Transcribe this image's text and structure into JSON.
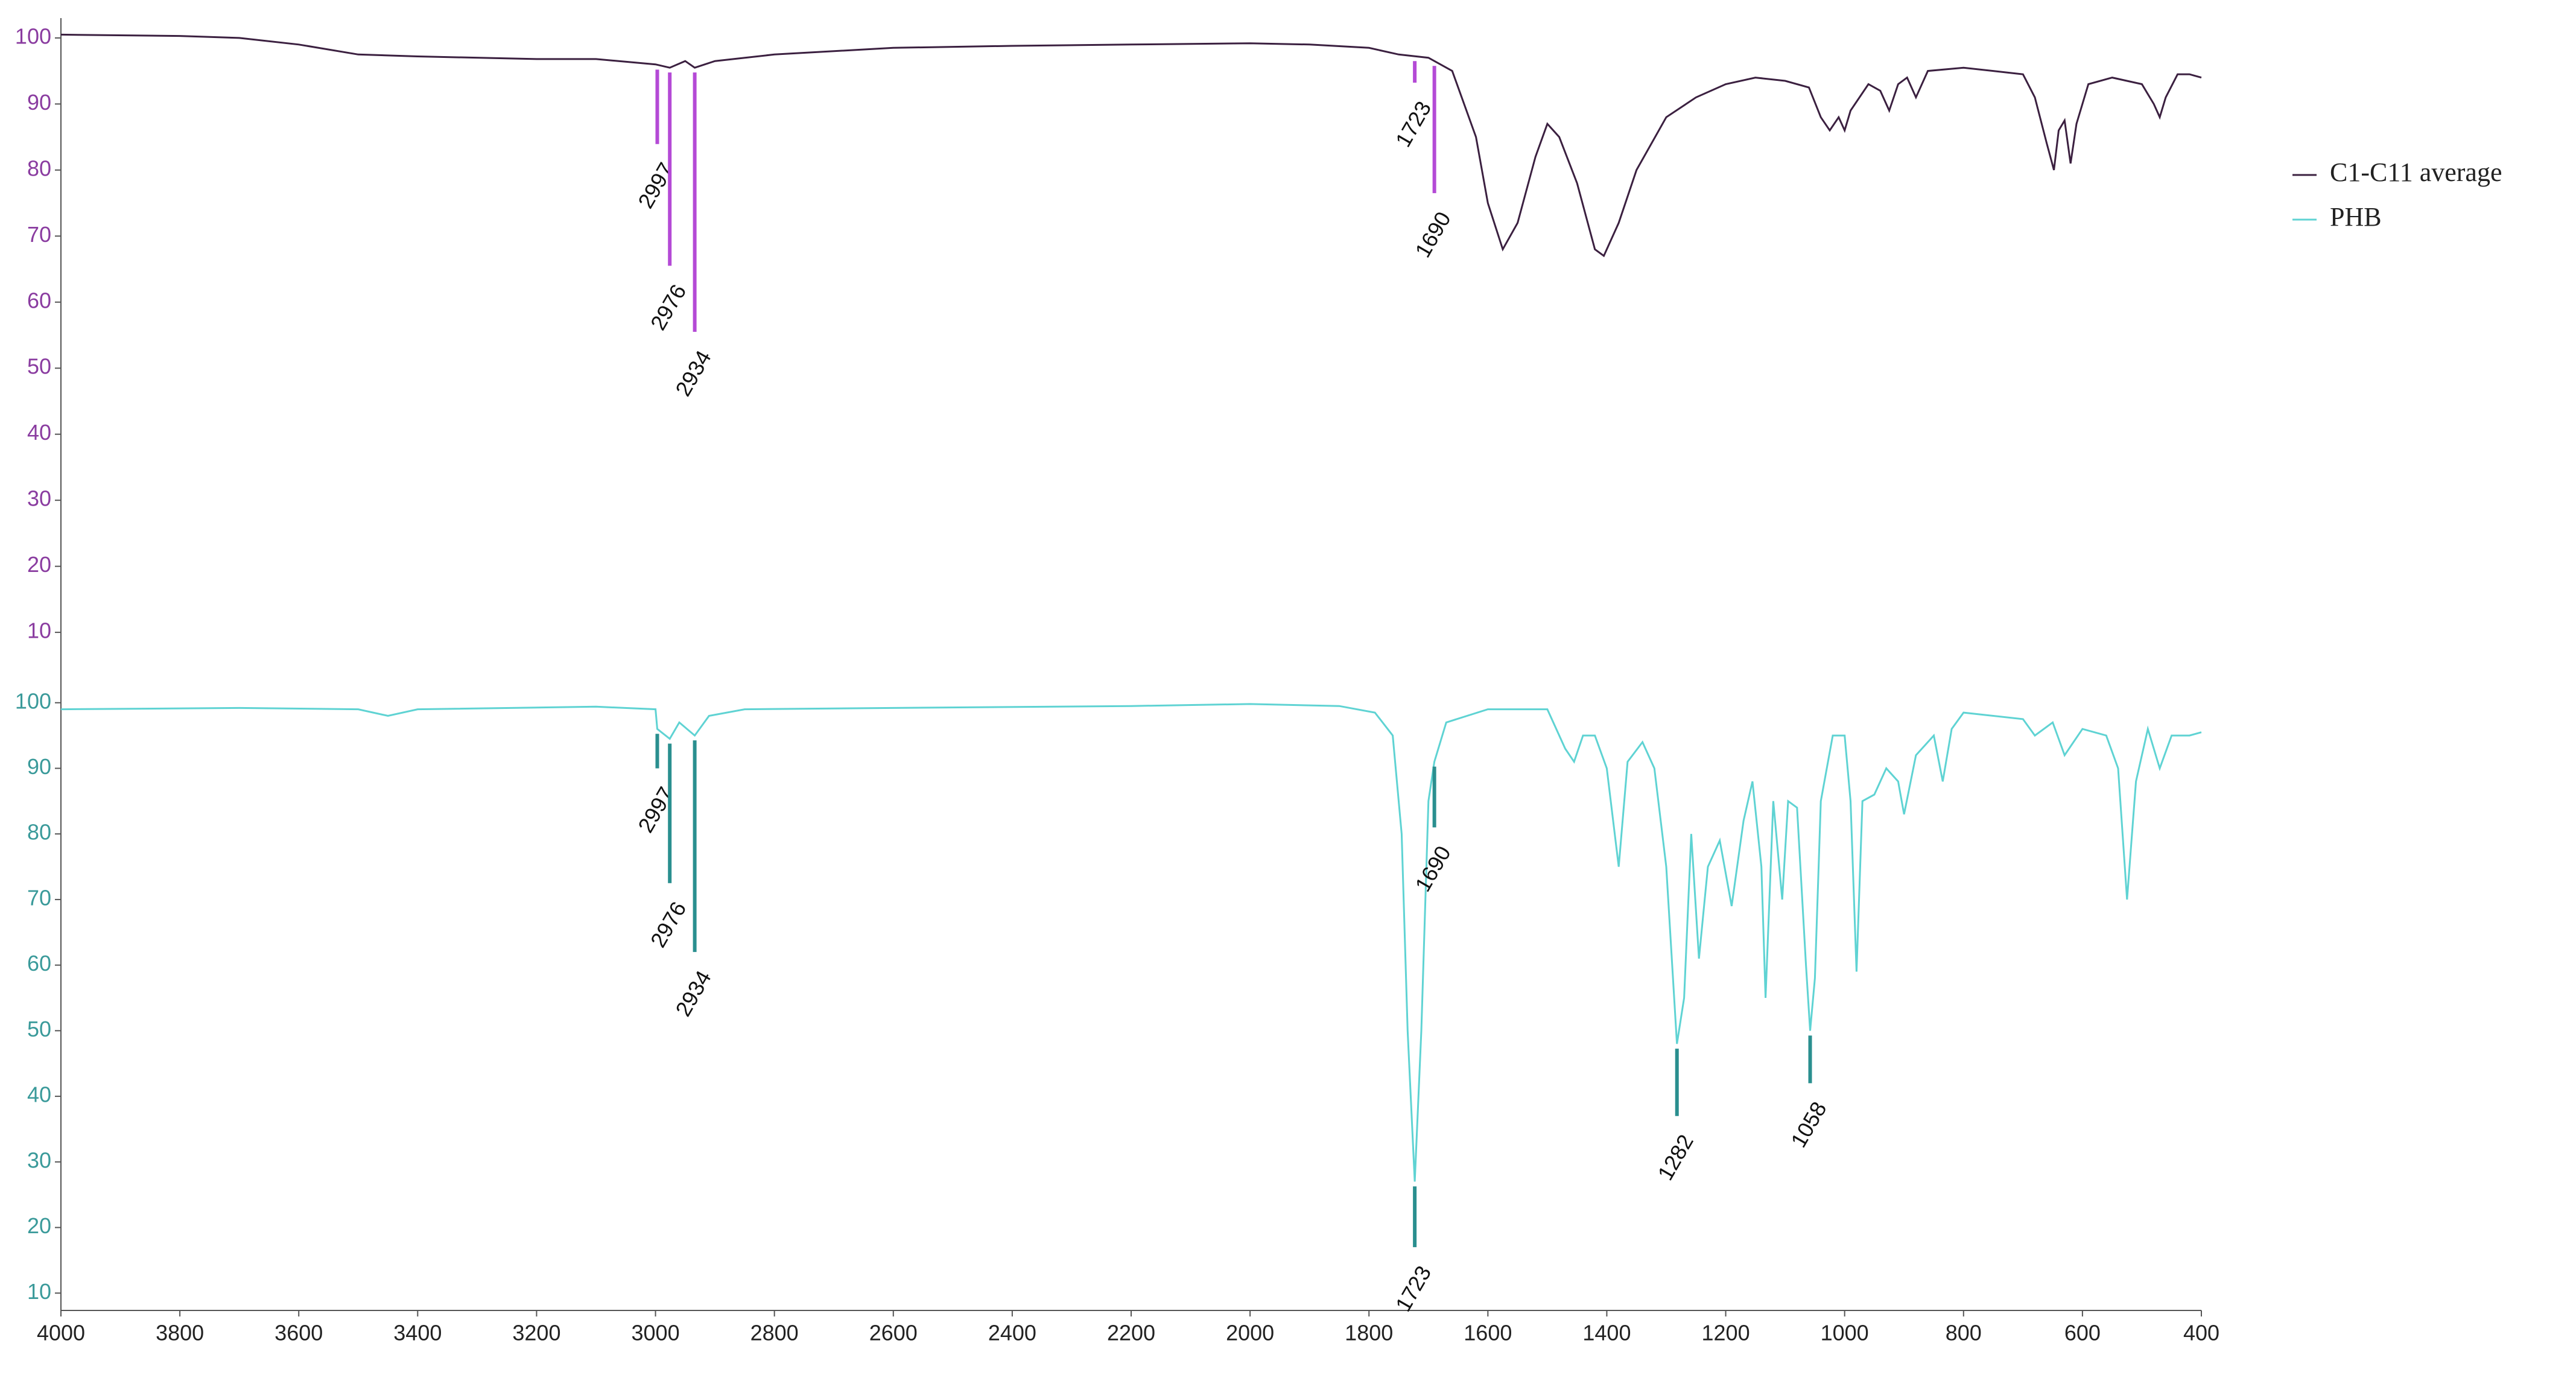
{
  "chart_data": [
    {
      "type": "line",
      "series": [
        {
          "name": "C1-C11 average",
          "color": "#3b2040",
          "values": [
            100.5,
            100.3,
            100,
            99,
            97.5,
            97.2,
            96.8,
            96.8,
            96,
            95.5,
            96.5,
            95.5,
            96.5,
            97.5,
            98.5,
            98.8,
            99,
            99.2,
            99,
            98.5,
            97.5,
            97,
            95,
            85,
            75,
            68,
            72,
            82,
            87,
            85,
            78,
            68,
            67,
            72,
            80,
            88,
            91,
            93,
            94,
            93.5,
            92.5,
            88,
            86,
            88,
            86,
            89,
            93,
            92,
            89,
            93,
            94,
            91,
            95,
            95.5,
            95,
            94.5,
            91,
            84,
            80,
            86,
            87.5,
            81,
            87,
            93,
            94,
            93,
            90,
            88,
            91,
            94.5,
            94.5,
            94
          ]
        }
      ],
      "x": [
        4000,
        3800,
        3700,
        3600,
        3500,
        3400,
        3200,
        3100,
        3000,
        2976,
        2950,
        2934,
        2900,
        2800,
        2600,
        2400,
        2200,
        2000,
        1900,
        1800,
        1750,
        1700,
        1660,
        1620,
        1600,
        1575,
        1550,
        1520,
        1500,
        1480,
        1450,
        1420,
        1405,
        1380,
        1350,
        1300,
        1250,
        1200,
        1150,
        1100,
        1060,
        1040,
        1025,
        1010,
        1000,
        990,
        960,
        940,
        925,
        910,
        895,
        880,
        860,
        800,
        750,
        700,
        680,
        660,
        648,
        640,
        630,
        620,
        610,
        590,
        550,
        500,
        480,
        470,
        460,
        440,
        420,
        400
      ],
      "xlim": [
        4000,
        400
      ],
      "ylim": [
        8,
        102
      ],
      "yticks": [
        10,
        20,
        30,
        40,
        50,
        60,
        70,
        80,
        90,
        100
      ],
      "axis_color": "#8a3ca0",
      "peak_color": "#b44ad6",
      "peaks": [
        2997,
        2976,
        2934,
        1723,
        1690
      ]
    },
    {
      "type": "line",
      "series": [
        {
          "name": "PHB",
          "color": "#5fd3d3",
          "values": [
            99,
            99.2,
            99,
            98,
            99,
            99.4,
            99,
            96,
            94.5,
            97,
            95,
            98,
            99,
            99.2,
            99.5,
            99.8,
            99.5,
            98.5,
            95,
            80,
            50,
            27,
            50,
            85,
            91,
            97,
            99,
            99,
            93,
            91,
            95,
            95,
            90,
            75,
            91,
            94,
            90,
            75,
            48,
            55,
            80,
            61,
            75,
            79,
            69,
            82,
            88,
            75,
            55,
            85,
            70,
            85,
            84,
            60,
            50,
            58,
            85,
            95,
            95,
            85,
            59,
            85,
            86,
            90,
            88,
            83,
            92,
            95,
            88,
            96,
            98.5,
            97.5,
            95,
            97,
            92,
            96,
            95,
            90,
            70,
            88,
            96,
            90,
            95,
            95,
            95.5
          ]
        }
      ],
      "x": [
        4000,
        3700,
        3500,
        3450,
        3400,
        3100,
        3000,
        2997,
        2976,
        2960,
        2934,
        2910,
        2850,
        2600,
        2200,
        2000,
        1850,
        1790,
        1760,
        1745,
        1735,
        1723,
        1712,
        1700,
        1690,
        1670,
        1600,
        1500,
        1470,
        1455,
        1440,
        1420,
        1400,
        1380,
        1365,
        1340,
        1320,
        1300,
        1282,
        1270,
        1258,
        1245,
        1230,
        1210,
        1190,
        1170,
        1155,
        1140,
        1133,
        1120,
        1105,
        1095,
        1080,
        1065,
        1058,
        1050,
        1040,
        1020,
        1000,
        990,
        980,
        970,
        950,
        930,
        910,
        900,
        880,
        850,
        835,
        820,
        800,
        700,
        680,
        650,
        630,
        600,
        560,
        540,
        525,
        510,
        490,
        470,
        450,
        420,
        400
      ],
      "xlim": [
        4000,
        400
      ],
      "ylim": [
        8,
        102
      ],
      "xticks": [
        4000,
        3800,
        3600,
        3400,
        3200,
        3000,
        2800,
        2600,
        2400,
        2200,
        2000,
        1800,
        1600,
        1400,
        1200,
        1000,
        800,
        600,
        400
      ],
      "yticks": [
        10,
        20,
        30,
        40,
        50,
        60,
        70,
        80,
        90,
        100
      ],
      "axis_color": "#3a9a9a",
      "peak_color": "#2a8f8f",
      "peaks": [
        2997,
        2976,
        2934,
        1723,
        1690,
        1282,
        1058
      ]
    }
  ]
}
